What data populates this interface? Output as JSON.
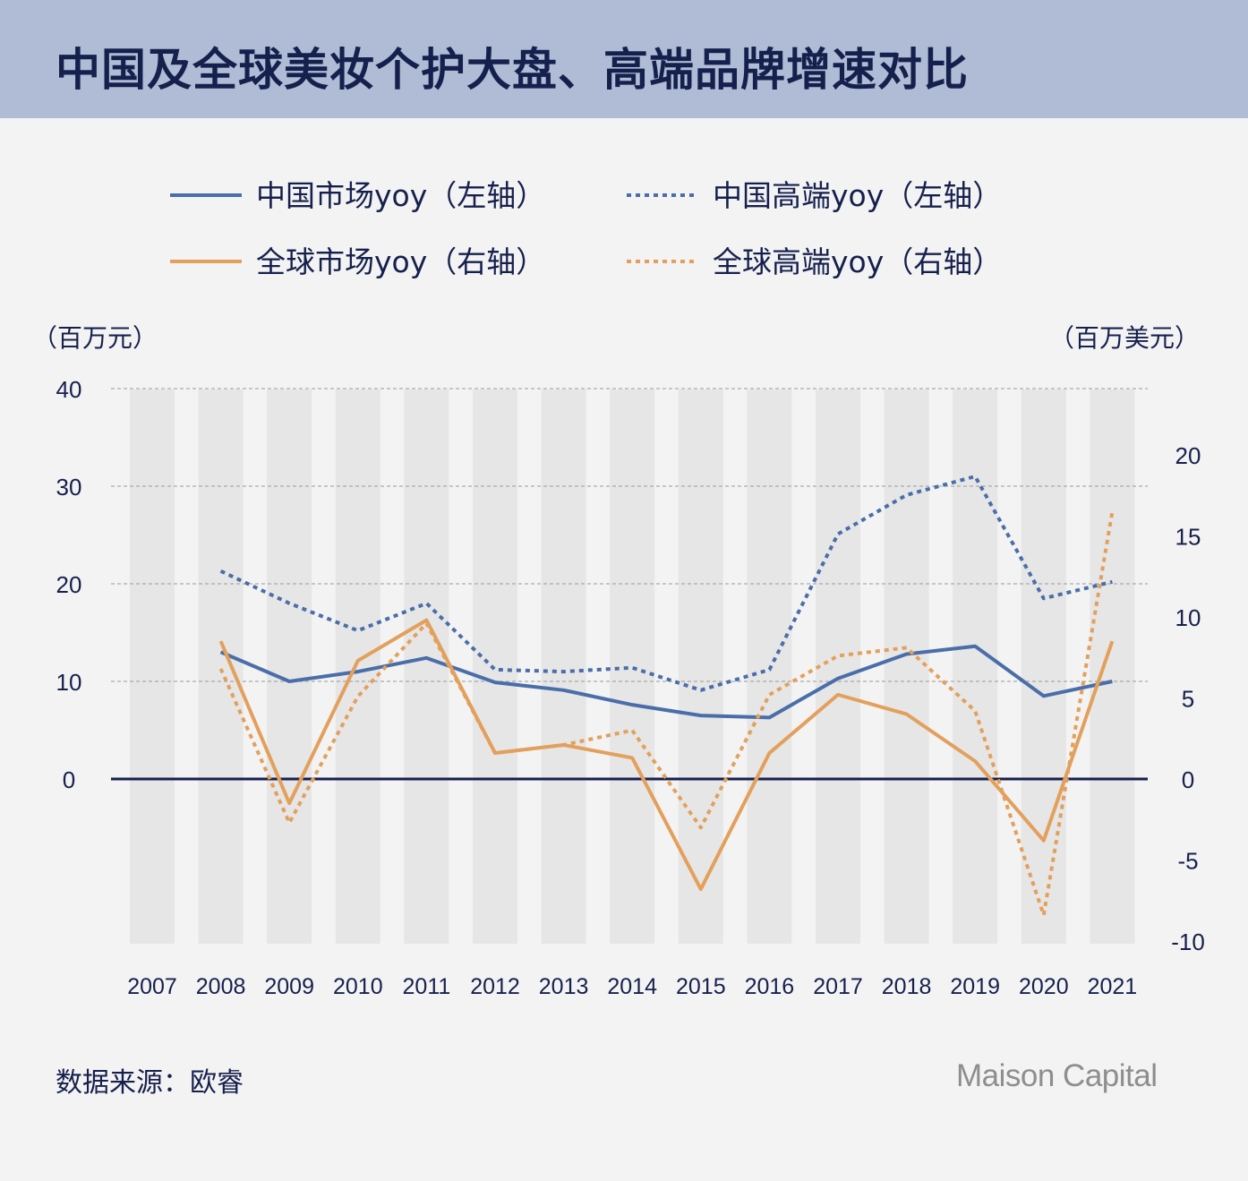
{
  "header": {
    "title": "中国及全球美妆个护大盘、高端品牌增速对比"
  },
  "footer": {
    "source": "数据来源：欧睿",
    "logo_text": "Maison Capital"
  },
  "colors": {
    "header_bg": "#b0bcd6",
    "title": "#16204d",
    "china": "#4a6ea9",
    "global": "#e3a05c",
    "axis": "#16204d",
    "band": "#e6e6e6"
  },
  "chart_data": {
    "type": "line",
    "categories": [
      "2007",
      "2008",
      "2009",
      "2010",
      "2011",
      "2012",
      "2013",
      "2014",
      "2015",
      "2016",
      "2017",
      "2018",
      "2019",
      "2020",
      "2021"
    ],
    "left_axis": {
      "unit_label": "（百万元）",
      "ticks": [
        0,
        10,
        20,
        30,
        40
      ],
      "ylim": [
        -17,
        40
      ]
    },
    "right_axis": {
      "unit_label": "（百万美元）",
      "ticks": [
        -10,
        -5,
        0,
        5,
        10,
        15,
        20
      ],
      "ylim": [
        -10,
        24
      ]
    },
    "series": [
      {
        "name": "中国市场yoy（左轴）",
        "axis": "left",
        "style": "solid",
        "color": "#4a6ea9",
        "values": [
          null,
          13.0,
          10.0,
          11.0,
          12.4,
          9.9,
          9.1,
          7.6,
          6.5,
          6.3,
          10.3,
          12.8,
          13.6,
          8.5,
          10.0
        ]
      },
      {
        "name": "中国高端yoy（左轴）",
        "axis": "left",
        "style": "dotted",
        "color": "#4a6ea9",
        "values": [
          null,
          21.3,
          18.0,
          15.2,
          18.0,
          11.2,
          11.0,
          11.4,
          9.1,
          11.2,
          25.1,
          29.1,
          31.0,
          18.5,
          20.2
        ]
      },
      {
        "name": "全球市场yoy（右轴）",
        "axis": "right",
        "style": "solid",
        "color": "#e3a05c",
        "values": [
          null,
          8.5,
          -1.5,
          7.3,
          9.8,
          1.6,
          2.1,
          1.3,
          -6.8,
          1.6,
          5.2,
          4.0,
          1.1,
          -3.8,
          8.5
        ]
      },
      {
        "name": "全球高端yoy（右轴）",
        "axis": "right",
        "style": "dotted",
        "color": "#e3a05c",
        "values": [
          null,
          6.8,
          -2.7,
          5.1,
          9.6,
          1.6,
          2.1,
          3.0,
          -3.0,
          5.2,
          7.6,
          8.1,
          4.2,
          -8.4,
          16.5
        ]
      }
    ]
  }
}
